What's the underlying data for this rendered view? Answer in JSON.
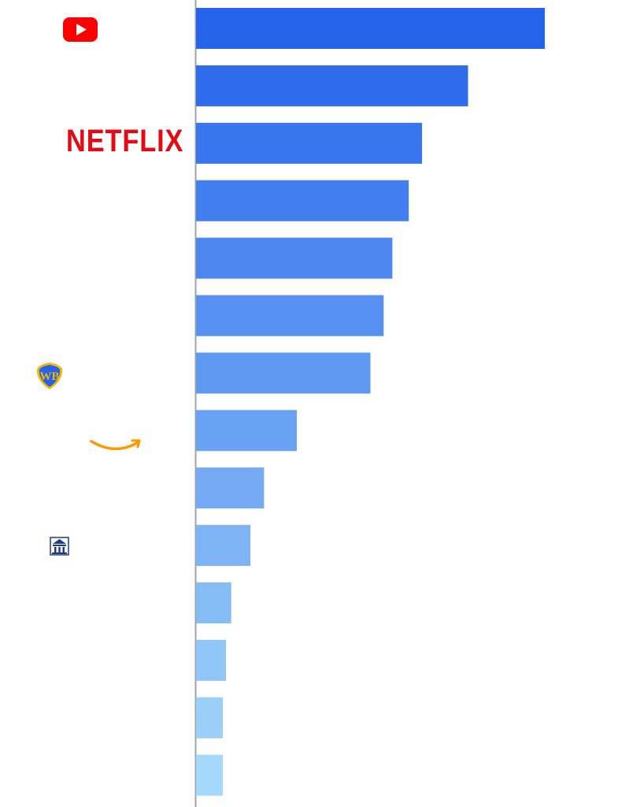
{
  "chart_data": {
    "type": "bar",
    "orientation": "horizontal",
    "rows": [
      {
        "logo": "youtube-logo",
        "value": 100
      },
      {
        "logo": "",
        "value": 78
      },
      {
        "logo": "netflix-logo",
        "value": 64.8
      },
      {
        "logo": "",
        "value": 61
      },
      {
        "logo": "",
        "value": 56.3
      },
      {
        "logo": "",
        "value": 53.8
      },
      {
        "logo": "warner-bros-logo",
        "value": 50
      },
      {
        "logo": "amazon-logo",
        "value": 28.9
      },
      {
        "logo": "",
        "value": 19.5
      },
      {
        "logo": "",
        "value": 15.6
      },
      {
        "logo": "",
        "value": 10.1
      },
      {
        "logo": "",
        "value": 8.6
      },
      {
        "logo": "",
        "value": 7.7
      },
      {
        "logo": "",
        "value": 7.7
      }
    ],
    "xlim": [
      0,
      100
    ],
    "grid": false,
    "colors": {
      "bar_gradient_start": "#2563eb",
      "bar_gradient_end": "#a5d8fa",
      "axis_line": "#9ca3af"
    }
  },
  "logos": {
    "netflix_text": "NETFLIX",
    "youtube_color": "#ff0000",
    "netflix_color": "#e50914",
    "warner_bros_color": "#f5b700",
    "amazon_color": "#ff9900",
    "paramount_color": "#1e3a8a"
  }
}
